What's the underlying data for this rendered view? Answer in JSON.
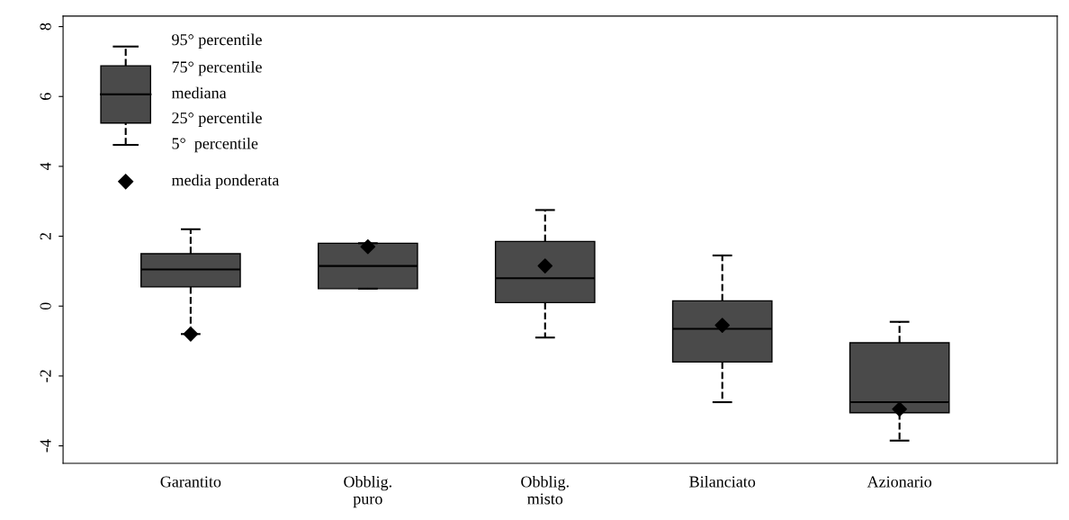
{
  "chart_data": {
    "type": "box",
    "categories": [
      "Garantito",
      "Obblig.\npuro",
      "Obblig.\nmisto",
      "Bilanciato",
      "Azionario"
    ],
    "boxes": [
      {
        "low": -0.8,
        "q1": 0.55,
        "median": 1.05,
        "q3": 1.5,
        "high": 2.2,
        "mean": -0.8
      },
      {
        "low": 0.5,
        "q1": 0.5,
        "median": 1.15,
        "q3": 1.8,
        "high": 1.8,
        "mean": 1.7
      },
      {
        "low": -0.9,
        "q1": 0.1,
        "median": 0.8,
        "q3": 1.85,
        "high": 2.75,
        "mean": 1.15
      },
      {
        "low": -2.75,
        "q1": -1.6,
        "median": -0.65,
        "q3": 0.15,
        "high": 1.45,
        "mean": -0.55
      },
      {
        "low": -3.85,
        "q1": -3.05,
        "median": -2.75,
        "q3": -1.05,
        "high": -0.45,
        "mean": -2.95
      }
    ],
    "color": "#4a4a4a",
    "ylim": [
      -4.5,
      8.3
    ],
    "yticks": [
      -4,
      -2,
      0,
      2,
      4,
      6,
      8
    ],
    "grid": false,
    "line_style": "dashed",
    "annotations": [
      "95° percentile",
      "75° percentile",
      "mediana",
      "25° percentile",
      "5°  percentile",
      "media ponderata"
    ]
  }
}
